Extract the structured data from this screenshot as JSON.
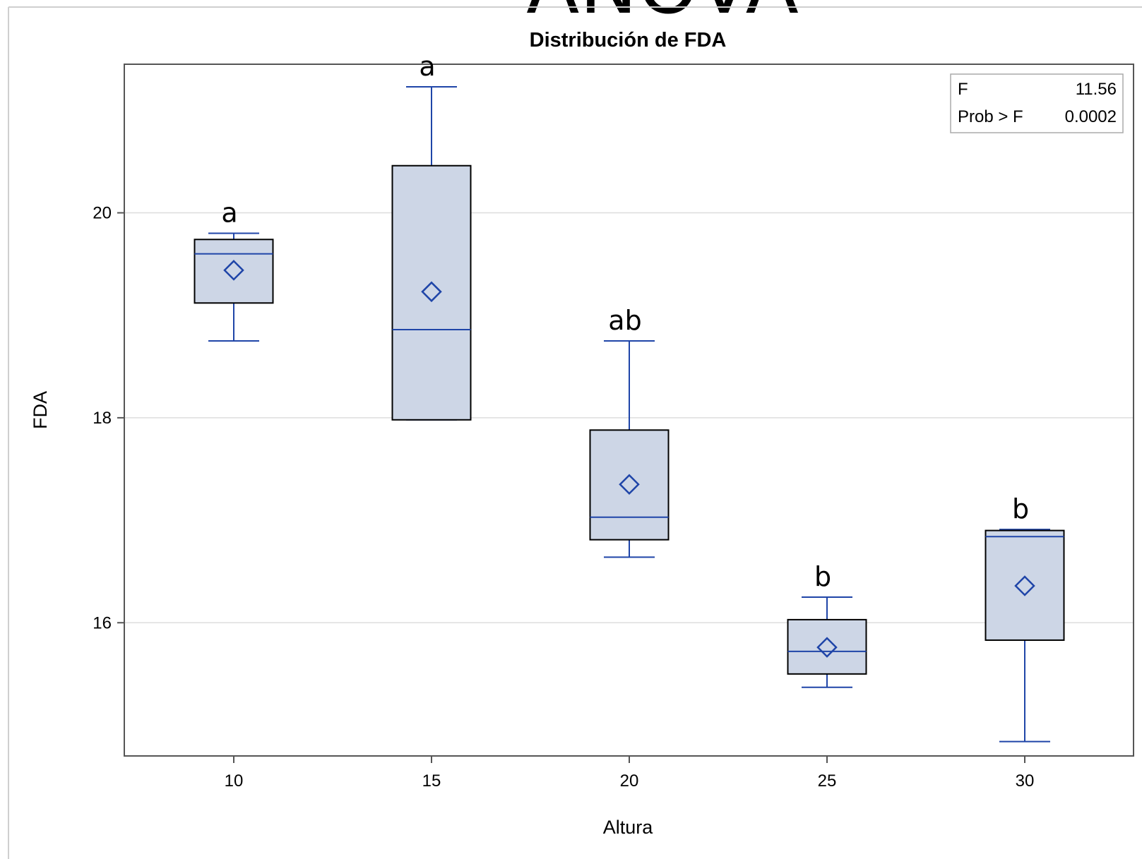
{
  "overlay_title": "ANOVA",
  "chart_data": {
    "type": "box",
    "title": "Distribución de FDA",
    "xlabel": "Altura",
    "ylabel": "FDA",
    "categories": [
      "10",
      "15",
      "20",
      "25",
      "30"
    ],
    "yticks": [
      "16",
      "18",
      "20"
    ],
    "ylim": [
      14.7,
      21.45
    ],
    "grid": "horizontal",
    "colors": {
      "box_fill": "#cdd6e6",
      "box_stroke": "#000000",
      "whisker": "#1f45a8",
      "median": "#1f45a8",
      "mean_marker": "#1f45a8",
      "grid": "#dddddd",
      "frame": "#555555"
    },
    "boxes": [
      {
        "category": "10",
        "min": 18.75,
        "q1": 19.12,
        "median": 19.6,
        "q3": 19.74,
        "max": 19.8,
        "mean": 19.44,
        "letter": "a"
      },
      {
        "category": "15",
        "min": 17.98,
        "q1": 17.98,
        "median": 18.86,
        "q3": 20.46,
        "max": 21.23,
        "mean": 19.23,
        "letter": "a"
      },
      {
        "category": "20",
        "min": 16.64,
        "q1": 16.81,
        "median": 17.03,
        "q3": 17.88,
        "max": 18.75,
        "mean": 17.35,
        "letter": "ab"
      },
      {
        "category": "25",
        "min": 15.37,
        "q1": 15.5,
        "median": 15.72,
        "q3": 16.03,
        "max": 16.25,
        "mean": 15.76,
        "letter": "b"
      },
      {
        "category": "30",
        "min": 14.84,
        "q1": 15.83,
        "median": 16.84,
        "q3": 16.9,
        "max": 16.91,
        "mean": 16.36,
        "letter": "b"
      }
    ],
    "stats": [
      {
        "label": "F",
        "value": "11.56"
      },
      {
        "label": "Prob > F",
        "value": "0.0002"
      }
    ],
    "stats_position": "top-right"
  }
}
